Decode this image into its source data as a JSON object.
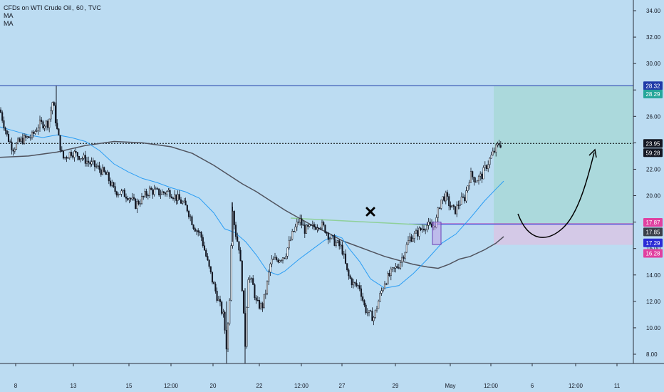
{
  "legend": {
    "symbol": "CFDs on WTI Crude Oil",
    "interval": "60",
    "source": "TVC",
    "indicators": [
      "MA",
      "MA"
    ]
  },
  "colors": {
    "background": "#bcdcf2",
    "candle": "#131722",
    "ma_fast": "#2a9df4",
    "ma_slow": "#50535e",
    "target_zone": "#a8d8d8",
    "stop_zone": "#d6c6e6",
    "resistance_line": "#1f3ba8",
    "entry_line": "#2b2bd6",
    "stop_line": "#e040a0",
    "neckline": "#8fd09a",
    "arrow": "#000000"
  },
  "chart_data": {
    "type": "candlestick",
    "instrument": "CFDs on WTI Crude Oil",
    "timeframe": "60",
    "ylim": [
      7.0,
      35.0
    ],
    "y_ticks": [
      "8.00",
      "10.00",
      "12.00",
      "14.00",
      "16.00",
      "18.00",
      "20.00",
      "22.00",
      "24.00",
      "26.00",
      "28.00",
      "30.00",
      "32.00",
      "34.00"
    ],
    "x_ticks": [
      "8",
      "13",
      "15",
      "12:00",
      "20",
      "22",
      "12:00",
      "27",
      "29",
      "May",
      "12:00",
      "6",
      "12:00",
      "11"
    ],
    "price_path": [
      [
        0,
        26.5
      ],
      [
        10,
        24.5
      ],
      [
        18,
        23.6
      ],
      [
        30,
        24.2
      ],
      [
        45,
        24.5
      ],
      [
        55,
        25.4
      ],
      [
        68,
        25.5
      ],
      [
        74,
        27.2
      ],
      [
        80,
        25.0
      ],
      [
        88,
        22.8
      ],
      [
        100,
        23.3
      ],
      [
        112,
        23.0
      ],
      [
        125,
        22.5
      ],
      [
        140,
        22.0
      ],
      [
        150,
        21.5
      ],
      [
        160,
        20.4
      ],
      [
        170,
        20.2
      ],
      [
        180,
        20.0
      ],
      [
        190,
        19.3
      ],
      [
        200,
        19.8
      ],
      [
        210,
        20.4
      ],
      [
        225,
        20.2
      ],
      [
        238,
        20.3
      ],
      [
        255,
        19.5
      ],
      [
        263,
        19.0
      ],
      [
        272,
        17.7
      ],
      [
        282,
        17.0
      ],
      [
        292,
        14.8
      ],
      [
        300,
        13.2
      ],
      [
        308,
        11.8
      ],
      [
        314,
        10.8
      ],
      [
        318,
        8.5
      ],
      [
        322,
        12.0
      ],
      [
        326,
        19.5
      ],
      [
        330,
        17.3
      ],
      [
        336,
        16.0
      ],
      [
        340,
        13.0
      ],
      [
        344,
        8.5
      ],
      [
        348,
        14.0
      ],
      [
        355,
        13.2
      ],
      [
        360,
        11.8
      ],
      [
        368,
        11.6
      ],
      [
        374,
        13.0
      ],
      [
        380,
        15.0
      ],
      [
        390,
        15.2
      ],
      [
        400,
        15.5
      ],
      [
        410,
        17.0
      ],
      [
        420,
        18.2
      ],
      [
        428,
        17.4
      ],
      [
        440,
        17.6
      ],
      [
        448,
        17.9
      ],
      [
        456,
        17.5
      ],
      [
        462,
        16.9
      ],
      [
        470,
        16.5
      ],
      [
        480,
        16.0
      ],
      [
        488,
        14.0
      ],
      [
        496,
        13.3
      ],
      [
        505,
        13.1
      ],
      [
        512,
        11.5
      ],
      [
        518,
        11.0
      ],
      [
        525,
        10.8
      ],
      [
        532,
        12.2
      ],
      [
        540,
        13.5
      ],
      [
        550,
        14.2
      ],
      [
        560,
        14.8
      ],
      [
        568,
        15.8
      ],
      [
        575,
        16.8
      ],
      [
        582,
        17.0
      ],
      [
        590,
        17.4
      ],
      [
        598,
        17.8
      ],
      [
        606,
        17.6
      ],
      [
        612,
        18.0
      ],
      [
        618,
        19.6
      ],
      [
        625,
        20.0
      ],
      [
        632,
        19.2
      ],
      [
        638,
        18.8
      ],
      [
        645,
        19.5
      ],
      [
        652,
        19.8
      ],
      [
        660,
        21.6
      ],
      [
        668,
        21.2
      ],
      [
        676,
        21.5
      ],
      [
        684,
        22.4
      ],
      [
        692,
        23.2
      ],
      [
        700,
        23.9
      ],
      [
        706,
        23.95
      ]
    ],
    "ma_fast": [
      [
        0,
        25.2
      ],
      [
        20,
        24.9
      ],
      [
        40,
        24.6
      ],
      [
        60,
        24.4
      ],
      [
        80,
        24.6
      ],
      [
        100,
        24.4
      ],
      [
        120,
        24.1
      ],
      [
        140,
        23.4
      ],
      [
        160,
        22.4
      ],
      [
        180,
        21.8
      ],
      [
        200,
        21.3
      ],
      [
        220,
        21.0
      ],
      [
        240,
        20.6
      ],
      [
        260,
        20.3
      ],
      [
        280,
        19.8
      ],
      [
        300,
        18.7
      ],
      [
        315,
        17.5
      ],
      [
        330,
        17.2
      ],
      [
        345,
        16.5
      ],
      [
        360,
        15.5
      ],
      [
        375,
        14.3
      ],
      [
        390,
        14.0
      ],
      [
        400,
        14.3
      ],
      [
        420,
        15.2
      ],
      [
        440,
        16.0
      ],
      [
        455,
        16.6
      ],
      [
        470,
        17.0
      ],
      [
        480,
        16.8
      ],
      [
        490,
        16.0
      ],
      [
        505,
        15.0
      ],
      [
        520,
        13.7
      ],
      [
        540,
        13.0
      ],
      [
        560,
        13.2
      ],
      [
        580,
        14.1
      ],
      [
        600,
        15.2
      ],
      [
        620,
        16.4
      ],
      [
        640,
        17.1
      ],
      [
        660,
        18.3
      ],
      [
        680,
        19.6
      ],
      [
        696,
        20.5
      ],
      [
        707,
        21.1
      ]
    ],
    "ma_slow": [
      [
        0,
        22.9
      ],
      [
        40,
        23.0
      ],
      [
        80,
        23.3
      ],
      [
        120,
        23.8
      ],
      [
        160,
        24.1
      ],
      [
        200,
        24.0
      ],
      [
        240,
        23.7
      ],
      [
        270,
        23.2
      ],
      [
        300,
        22.3
      ],
      [
        320,
        21.6
      ],
      [
        340,
        20.9
      ],
      [
        360,
        20.3
      ],
      [
        380,
        19.6
      ],
      [
        400,
        18.9
      ],
      [
        420,
        18.3
      ],
      [
        440,
        17.7
      ],
      [
        460,
        17.2
      ],
      [
        480,
        16.6
      ],
      [
        500,
        16.2
      ],
      [
        520,
        15.8
      ],
      [
        540,
        15.4
      ],
      [
        560,
        15.1
      ],
      [
        580,
        14.8
      ],
      [
        600,
        14.6
      ],
      [
        615,
        14.5
      ],
      [
        630,
        14.8
      ],
      [
        645,
        15.2
      ],
      [
        660,
        15.4
      ],
      [
        680,
        15.9
      ],
      [
        696,
        16.4
      ],
      [
        707,
        16.9
      ]
    ],
    "levels": {
      "resistance": 28.32,
      "target": 28.29,
      "current": 23.95,
      "entry": 17.87,
      "mid": 17.85,
      "stop_upper": 17.29,
      "stop_lower": 16.28
    },
    "countdown": "59:28",
    "price_labels": [
      "28.32",
      "28.29",
      "23.95",
      "59:28",
      "17.87",
      "17.85",
      "17.29",
      "16.28"
    ]
  }
}
